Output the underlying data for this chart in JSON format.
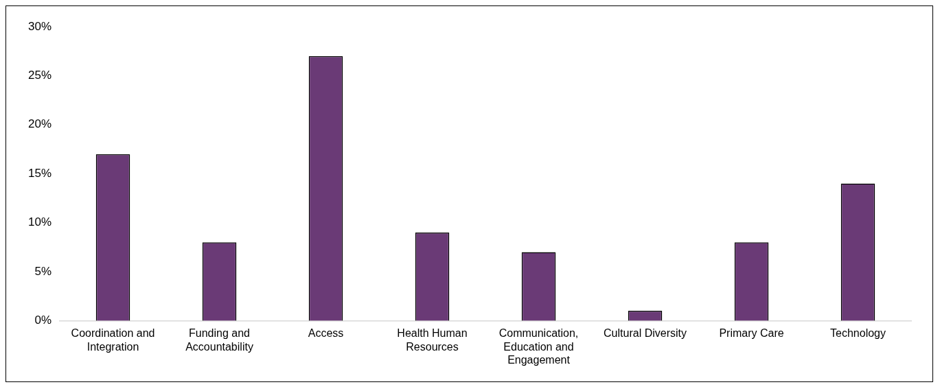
{
  "chart_data": {
    "type": "bar",
    "categories": [
      "Coordination and Integration",
      "Funding and Accountability",
      "Access",
      "Health Human Resources",
      "Communication, Education and Engagement",
      "Cultural Diversity",
      "Primary Care",
      "Technology"
    ],
    "values": [
      17,
      8,
      27,
      9,
      7,
      1,
      8,
      14
    ],
    "color": "#6a3a76",
    "ylim": [
      0,
      30
    ],
    "yticks": [
      {
        "value": 0,
        "label": "0%"
      },
      {
        "value": 5,
        "label": "5%"
      },
      {
        "value": 10,
        "label": "10%"
      },
      {
        "value": 15,
        "label": "15%"
      },
      {
        "value": 20,
        "label": "20%"
      },
      {
        "value": 25,
        "label": "25%"
      },
      {
        "value": 30,
        "label": "30%"
      }
    ],
    "grid": false,
    "legend": false
  }
}
